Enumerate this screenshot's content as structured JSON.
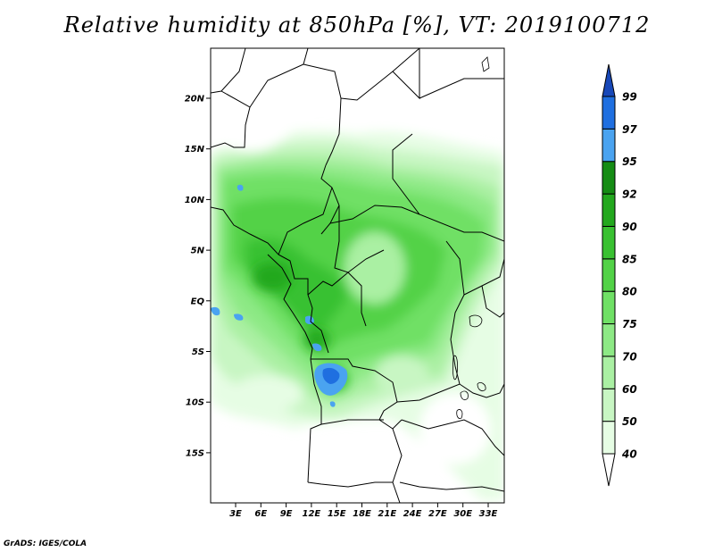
{
  "title": "Relative humidity at 850hPa [%], VT: 2019100712",
  "credit": "GrADS: IGES/COLA",
  "map": {
    "lat_labels": [
      "20N",
      "15N",
      "10N",
      "5N",
      "EQ",
      "5S",
      "10S",
      "15S"
    ],
    "lon_labels": [
      "3E",
      "6E",
      "9E",
      "12E",
      "15E",
      "18E",
      "21E",
      "24E",
      "27E",
      "30E",
      "33E"
    ]
  },
  "colorbar": {
    "levels": [
      "40",
      "50",
      "60",
      "70",
      "75",
      "80",
      "85",
      "90",
      "92",
      "95",
      "97",
      "99"
    ],
    "colors": [
      "#ffffff",
      "#e6fde4",
      "#c8f6c3",
      "#aaf0a3",
      "#8de985",
      "#6fe065",
      "#52d247",
      "#39c131",
      "#23a81e",
      "#158c14",
      "#4aa3f0",
      "#1f6fe0",
      "#1848b8"
    ]
  },
  "colors": {
    "land_lines": "#000000",
    "frame": "#000000"
  }
}
